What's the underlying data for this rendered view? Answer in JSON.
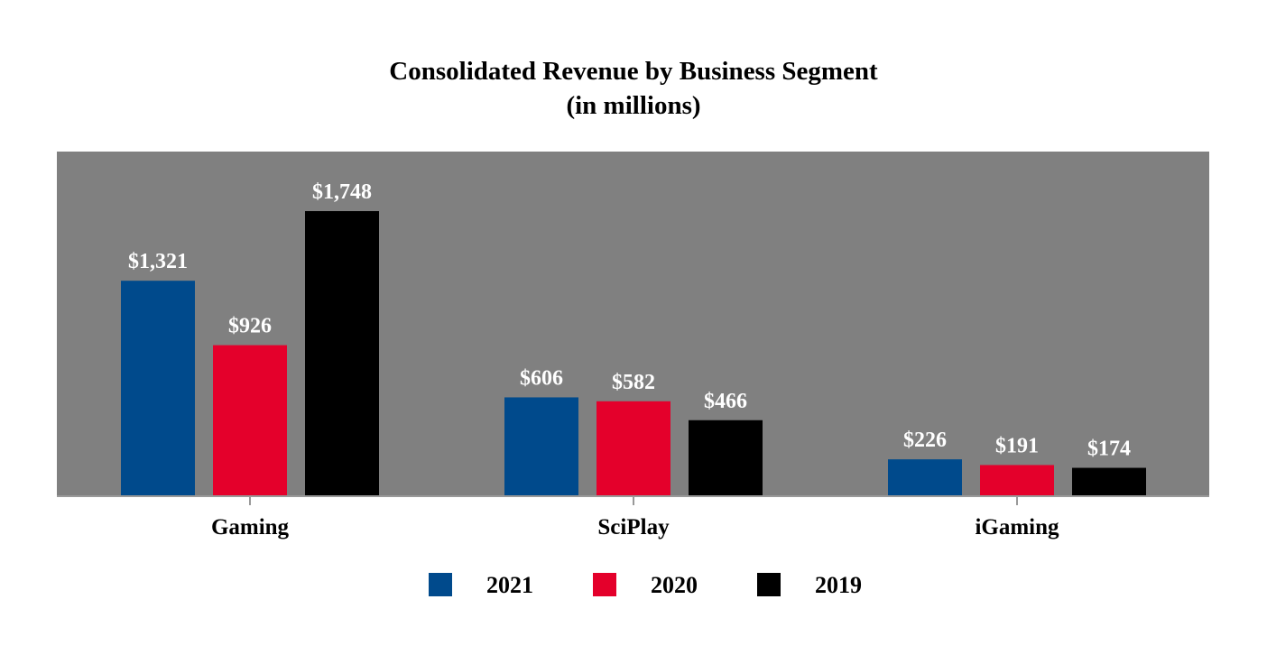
{
  "chart_data": {
    "type": "bar",
    "title": "Consolidated Revenue by Business Segment",
    "subtitle": "(in millions)",
    "categories": [
      "Gaming",
      "SciPlay",
      "iGaming"
    ],
    "series": [
      {
        "name": "2021",
        "color": "#004a8c",
        "values": [
          1321,
          606,
          226
        ],
        "labels": [
          "$1,321",
          "$606",
          "$226"
        ]
      },
      {
        "name": "2020",
        "color": "#e4002b",
        "values": [
          926,
          582,
          191
        ],
        "labels": [
          "$926",
          "$582",
          "$191"
        ]
      },
      {
        "name": "2019",
        "color": "#000000",
        "values": [
          1748,
          466,
          174
        ],
        "labels": [
          "$1,748",
          "$466",
          "$174"
        ]
      }
    ],
    "ylim": [
      0,
      2100
    ],
    "plot_background": "#808080",
    "grid": false,
    "legend_position": "bottom"
  }
}
